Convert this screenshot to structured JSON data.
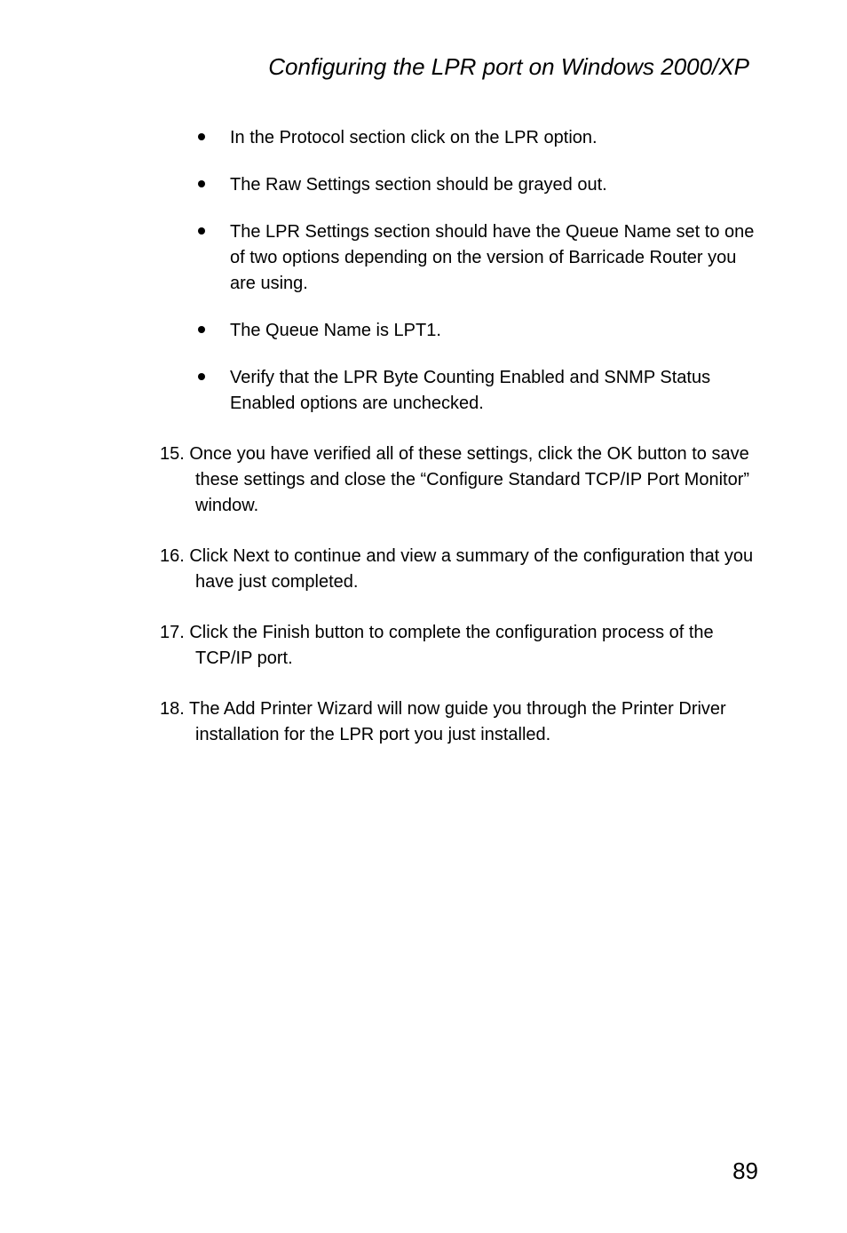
{
  "title": "Configuring the LPR port on Windows 2000/XP",
  "bullets": [
    "In the Protocol section click on the LPR option.",
    "The Raw Settings section should be grayed out.",
    "The LPR Settings section should have the Queue Name set to one of two options depending on the version of Barricade Router you are using.",
    "The Queue Name is LPT1.",
    "Verify that the LPR Byte Counting Enabled and SNMP Status Enabled options are unchecked."
  ],
  "numbered": [
    "15. Once you have verified all of these settings, click the OK button to save these settings and close the “Configure Standard TCP/IP Port Monitor” window.",
    "16. Click Next to continue and view a summary of the configuration that you have just completed.",
    "17. Click the Finish button to complete the configuration process of the TCP/IP port.",
    "18. The Add Printer Wizard will now guide you through the Printer Driver installation for the LPR port you just installed."
  ],
  "pageNumber": "89"
}
